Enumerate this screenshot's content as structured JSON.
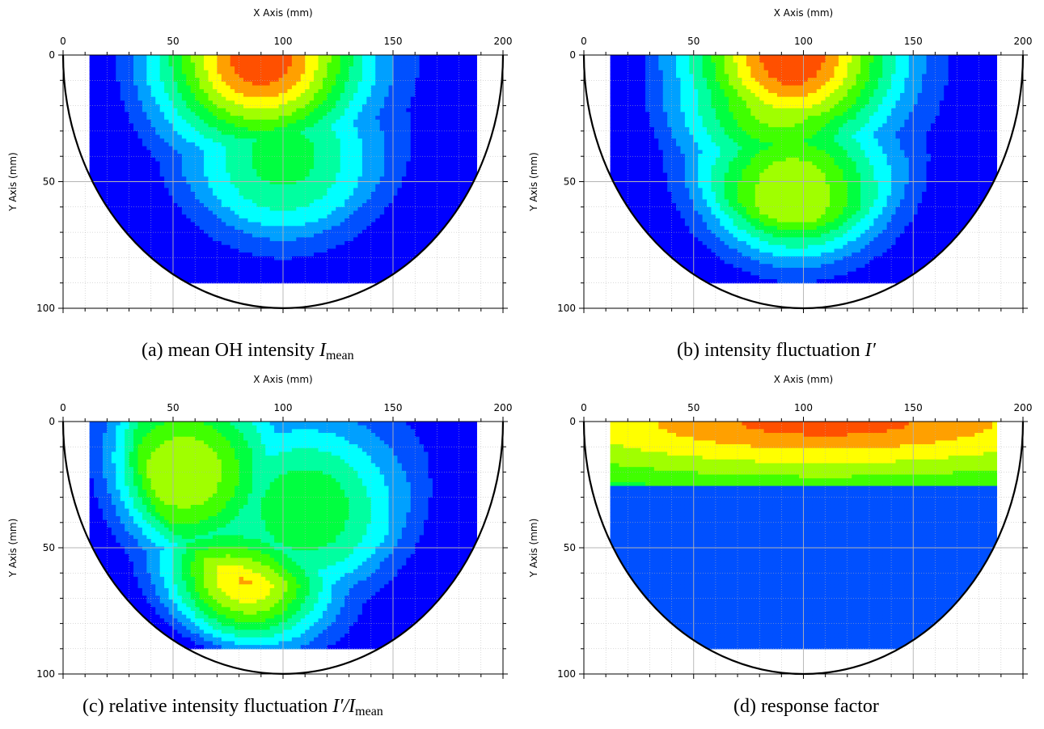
{
  "figure": {
    "panels": [
      {
        "caption": {
          "prefix": "(a) mean OH intensity ",
          "var": "I",
          "sub": "mean",
          "suffix": ""
        }
      },
      {
        "caption": {
          "prefix": "(b) intensity fluctuation ",
          "var": "I′",
          "sub": "",
          "suffix": ""
        }
      },
      {
        "caption": {
          "prefix": "(c) relative intensity fluctuation ",
          "var": "I′/I",
          "sub": "mean",
          "suffix": ""
        }
      },
      {
        "caption": {
          "prefix": "(d) response factor",
          "var": "",
          "sub": "",
          "suffix": ""
        }
      }
    ]
  },
  "colors": {
    "contour_levels": [
      "#0000ff",
      "#0050ff",
      "#00a0ff",
      "#00ffff",
      "#00ffa0",
      "#00ff40",
      "#40ff00",
      "#a0ff00",
      "#ffff00",
      "#ffa000",
      "#ff5000",
      "#ff0000"
    ],
    "line": "#000000",
    "grid": "#b4b4b4"
  },
  "chart_data": [
    {
      "type": "heatmap",
      "title": "(a) mean OH intensity Imean",
      "xlabel": "X Axis (mm)",
      "ylabel": "Y Axis (mm)",
      "xlim": [
        0,
        200
      ],
      "ylim": [
        100,
        0
      ],
      "x_ticks": [
        0,
        50,
        100,
        150,
        200
      ],
      "y_ticks": [
        0,
        50,
        100
      ],
      "grid": true,
      "boundary": "semicircle centered at (100, 0), radius 100",
      "measured_x_range": [
        12,
        188
      ],
      "measured_y_range": [
        0,
        89
      ],
      "peak_location": [
        90,
        0
      ],
      "peak_level": 11,
      "field": {
        "peaks": [
          {
            "x": 90,
            "y": 0,
            "value": 11
          },
          {
            "x": 100,
            "y": 40,
            "value": 5.5
          }
        ],
        "base": 0,
        "falloff": "radial"
      }
    },
    {
      "type": "heatmap",
      "title": "(b) intensity fluctuation I′",
      "xlabel": "X Axis (mm)",
      "ylabel": "Y Axis (mm)",
      "xlim": [
        0,
        200
      ],
      "ylim": [
        100,
        0
      ],
      "x_ticks": [
        0,
        50,
        100,
        150,
        200
      ],
      "y_ticks": [
        0,
        50,
        100
      ],
      "grid": true,
      "boundary": "semicircle centered at (100, 0), radius 100",
      "measured_x_range": [
        12,
        188
      ],
      "measured_y_range": [
        0,
        89
      ],
      "field": {
        "peaks": [
          {
            "x": 95,
            "y": 0,
            "value": 11
          },
          {
            "x": 90,
            "y": 15,
            "value": 8
          },
          {
            "x": 95,
            "y": 55,
            "value": 8
          }
        ],
        "base": 0,
        "falloff": "radial"
      }
    },
    {
      "type": "heatmap",
      "title": "(c) relative intensity fluctuation I′/Imean",
      "xlabel": "X Axis (mm)",
      "ylabel": "Y Axis (mm)",
      "xlim": [
        0,
        200
      ],
      "ylim": [
        100,
        0
      ],
      "x_ticks": [
        0,
        50,
        100,
        150,
        200
      ],
      "y_ticks": [
        0,
        50,
        100
      ],
      "grid": true,
      "boundary": "semicircle centered at (100, 0), radius 100",
      "measured_x_range": [
        12,
        188
      ],
      "measured_y_range": [
        0,
        89
      ],
      "field": {
        "peaks": [
          {
            "x": 75,
            "y": 80,
            "value": 11.5
          },
          {
            "x": 55,
            "y": 20,
            "value": 8
          },
          {
            "x": 110,
            "y": 35,
            "value": 6
          }
        ],
        "base": 0,
        "falloff": "radial"
      }
    },
    {
      "type": "heatmap",
      "title": "(d) response factor",
      "xlabel": "X Axis (mm)",
      "ylabel": "Y Axis (mm)",
      "xlim": [
        0,
        200
      ],
      "ylim": [
        100,
        0
      ],
      "x_ticks": [
        0,
        50,
        100,
        150,
        200
      ],
      "y_ticks": [
        0,
        50,
        100
      ],
      "grid": true,
      "boundary": "semicircle centered at (100, 0), radius 100",
      "measured_x_range": [
        12,
        188
      ],
      "measured_y_range": [
        0,
        89
      ],
      "field": {
        "peaks": [
          {
            "x": 110,
            "y": 0,
            "value": 11
          }
        ],
        "base": 1.5,
        "falloff": "vertical"
      }
    }
  ]
}
